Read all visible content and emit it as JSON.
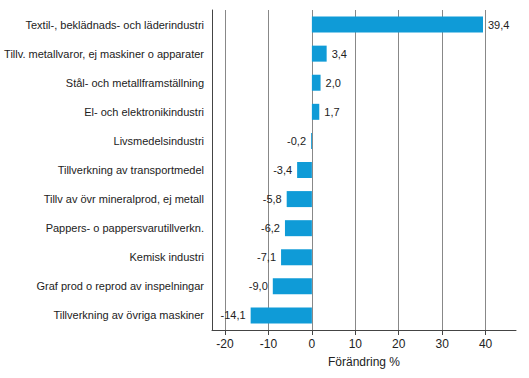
{
  "chart_data": {
    "type": "bar",
    "orientation": "horizontal",
    "x_label": "Förändring %",
    "categories": [
      "Textil-, beklädnads- och läderindustri",
      "Tillv. metallvaror, ej maskiner o apparater",
      "Stål- och metallframställning",
      "El- och elektronikindustri",
      "Livsmedelsindustri",
      "Tillverkning av transportmedel",
      "Tillv av övr mineralprod, ej metall",
      "Pappers- o pappersvarutillverkn.",
      "Kemisk industri",
      "Graf prod o reprod av inspelningar",
      "Tillverkning av övriga maskiner"
    ],
    "values": [
      39.4,
      3.4,
      2.0,
      1.7,
      -0.2,
      -3.4,
      -5.8,
      -6.2,
      -7.1,
      -9.0,
      -14.1
    ],
    "value_labels": [
      "39,4",
      "3,4",
      "2,0",
      "1,7",
      "-0,2",
      "-3,4",
      "-5,8",
      "-6,2",
      "-7,1",
      "-9,0",
      "-14,1"
    ],
    "color": "#0f9bd7",
    "xlim": [
      -23,
      47
    ],
    "xticks": [
      -20,
      -10,
      0,
      10,
      20,
      30,
      40
    ],
    "grid": true,
    "data_labels": true
  }
}
